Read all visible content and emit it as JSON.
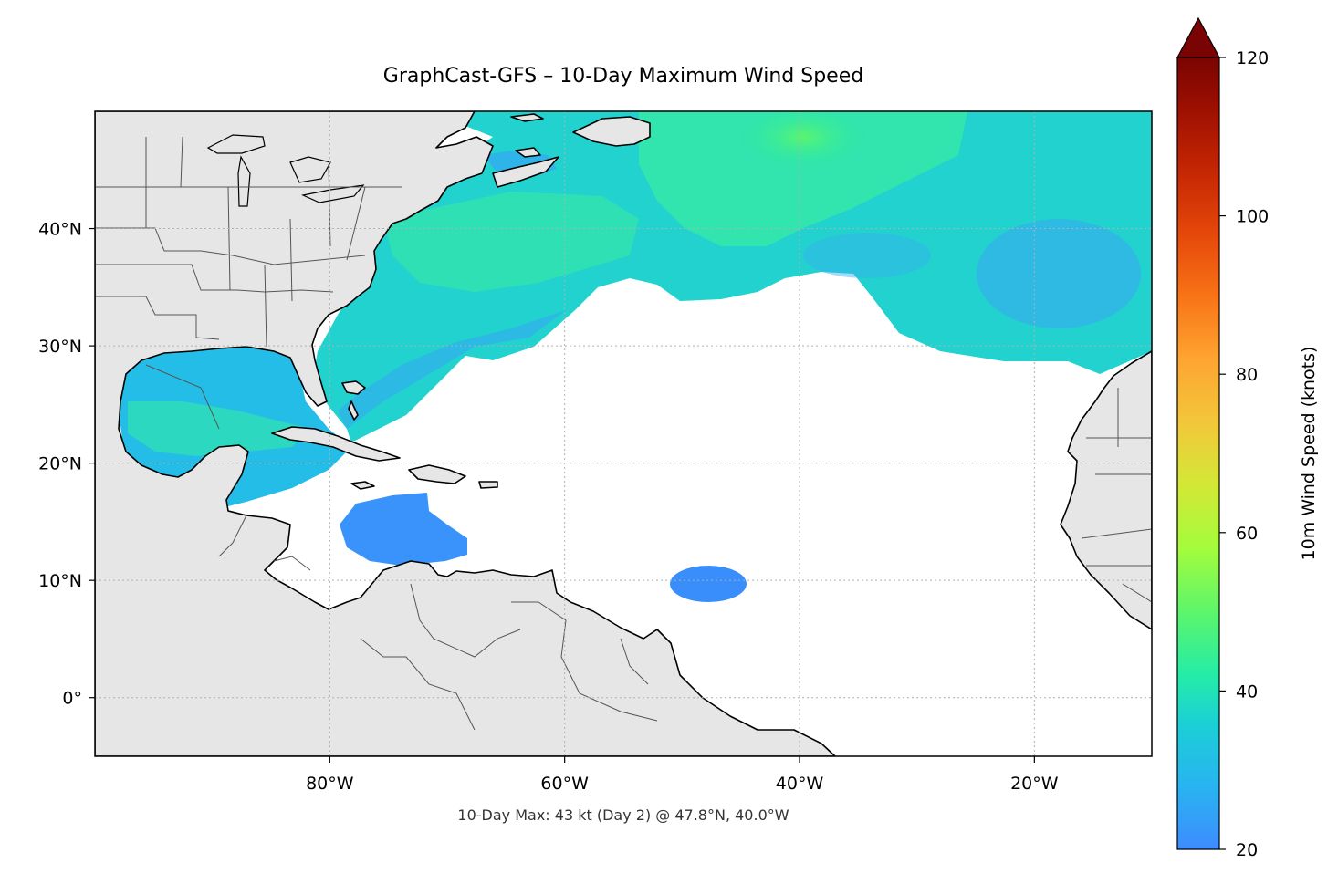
{
  "title": "GraphCast-GFS – 10-Day Maximum Wind Speed",
  "footnote": "10-Day Max: 43 kt (Day 2) @ 47.8°N, 40.0°W",
  "map": {
    "lon_range": [
      -100,
      -10
    ],
    "lat_range": [
      -5,
      50
    ],
    "x_ticks": [
      {
        "lon": -80,
        "label": "80°W"
      },
      {
        "lon": -60,
        "label": "60°W"
      },
      {
        "lon": -40,
        "label": "40°W"
      },
      {
        "lon": -20,
        "label": "20°W"
      }
    ],
    "y_ticks": [
      {
        "lat": 40,
        "label": "40°N"
      },
      {
        "lat": 30,
        "label": "30°N"
      },
      {
        "lat": 20,
        "label": "20°N"
      },
      {
        "lat": 10,
        "label": "10°N"
      },
      {
        "lat": 0,
        "label": "0°"
      }
    ],
    "land_color": "#e6e6e6",
    "gridlines": "dotted"
  },
  "colorbar": {
    "label": "10m Wind Speed (knots)",
    "range": [
      20,
      120
    ],
    "ticks": [
      {
        "value": 20,
        "label": "20"
      },
      {
        "value": 40,
        "label": "40"
      },
      {
        "value": 60,
        "label": "60"
      },
      {
        "value": 80,
        "label": "80"
      },
      {
        "value": 100,
        "label": "100"
      },
      {
        "value": 120,
        "label": "120"
      }
    ],
    "extend": "max",
    "colormap": "turbo"
  }
}
